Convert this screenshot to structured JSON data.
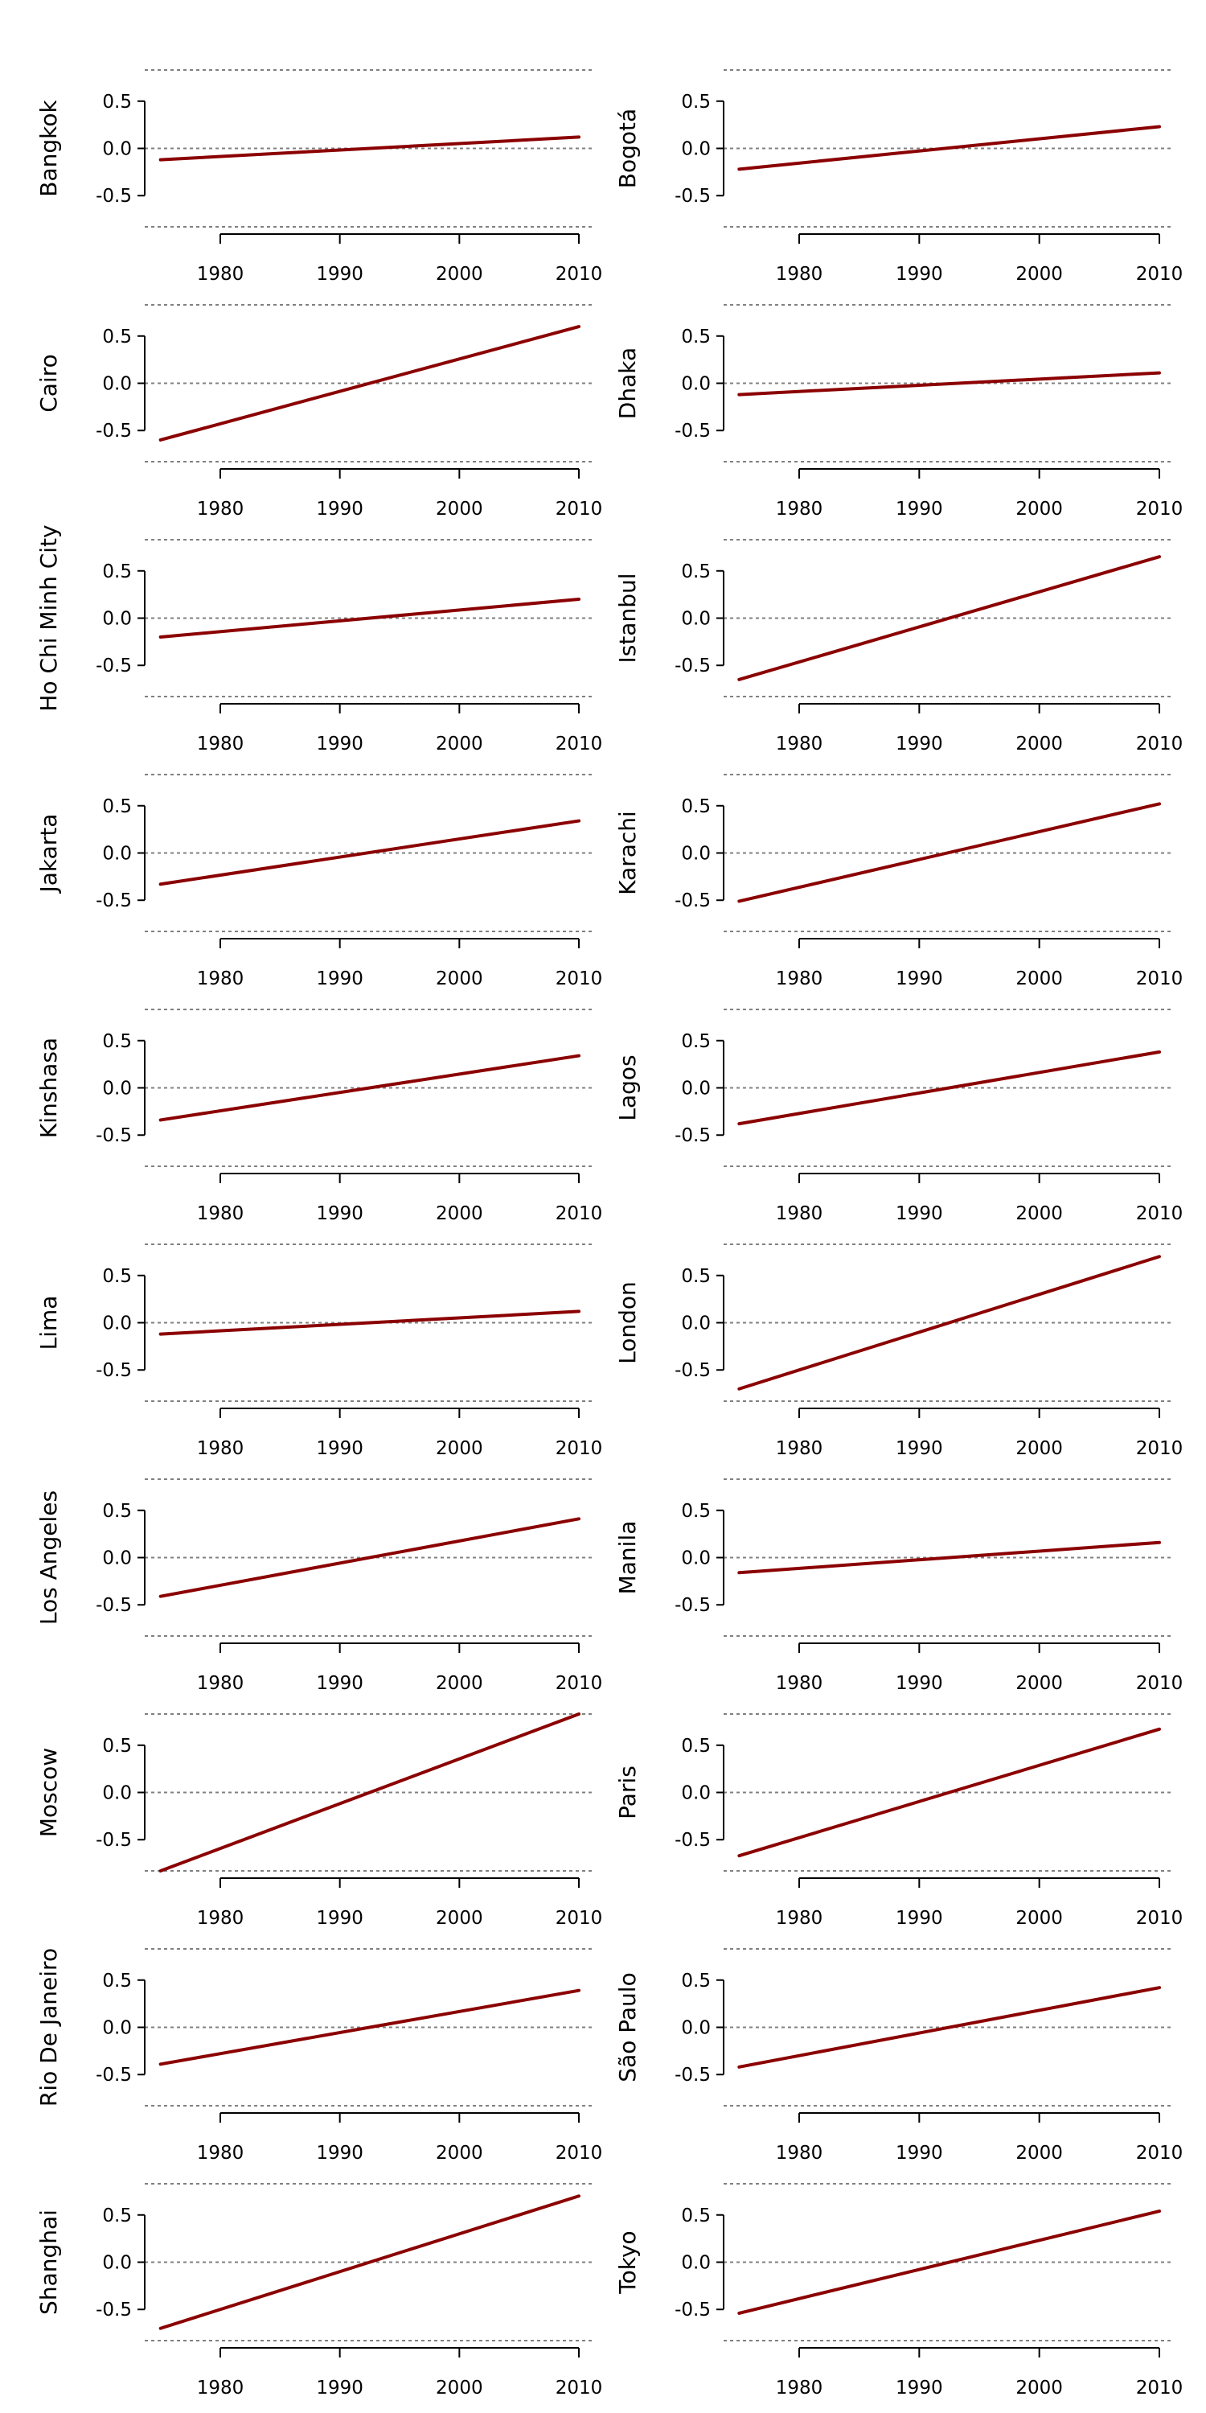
{
  "chart_data": {
    "type": "line",
    "layout": "small-multiples",
    "columns": 2,
    "colors": {
      "trend_line": "#8b0000",
      "reference_lines": "#808080",
      "axis": "#000000"
    },
    "y_ticks": [
      -0.5,
      0.0,
      0.5
    ],
    "y_tick_labels": [
      "-0.5",
      "0.0",
      "0.5"
    ],
    "x_ticks": [
      1980,
      1990,
      2000,
      2010
    ],
    "x_tick_labels": [
      "1980",
      "1990",
      "2000",
      "2010"
    ],
    "reference_lines_y": [
      -0.83,
      0.0,
      0.83
    ],
    "xlim": [
      1973,
      2011
    ],
    "ylim": [
      -0.83,
      0.83
    ],
    "grid": false,
    "panels": [
      {
        "title": "Bangkok",
        "x": [
          1975,
          2010
        ],
        "y": [
          -0.12,
          0.12
        ]
      },
      {
        "title": "Bogotá",
        "x": [
          1975,
          2010
        ],
        "y": [
          -0.22,
          0.23
        ]
      },
      {
        "title": "Cairo",
        "x": [
          1975,
          2010
        ],
        "y": [
          -0.6,
          0.6
        ]
      },
      {
        "title": "Dhaka",
        "x": [
          1975,
          2010
        ],
        "y": [
          -0.12,
          0.11
        ]
      },
      {
        "title": "Ho Chi Minh City",
        "x": [
          1975,
          2010
        ],
        "y": [
          -0.2,
          0.2
        ]
      },
      {
        "title": "Istanbul",
        "x": [
          1975,
          2010
        ],
        "y": [
          -0.65,
          0.65
        ]
      },
      {
        "title": "Jakarta",
        "x": [
          1975,
          2010
        ],
        "y": [
          -0.33,
          0.34
        ]
      },
      {
        "title": "Karachi",
        "x": [
          1975,
          2010
        ],
        "y": [
          -0.51,
          0.52
        ]
      },
      {
        "title": "Kinshasa",
        "x": [
          1975,
          2010
        ],
        "y": [
          -0.34,
          0.34
        ]
      },
      {
        "title": "Lagos",
        "x": [
          1975,
          2010
        ],
        "y": [
          -0.38,
          0.38
        ]
      },
      {
        "title": "Lima",
        "x": [
          1975,
          2010
        ],
        "y": [
          -0.12,
          0.12
        ]
      },
      {
        "title": "London",
        "x": [
          1975,
          2010
        ],
        "y": [
          -0.7,
          0.7
        ]
      },
      {
        "title": "Los Angeles",
        "x": [
          1975,
          2010
        ],
        "y": [
          -0.41,
          0.41
        ]
      },
      {
        "title": "Manila",
        "x": [
          1975,
          2010
        ],
        "y": [
          -0.16,
          0.16
        ]
      },
      {
        "title": "Moscow",
        "x": [
          1975,
          2010
        ],
        "y": [
          -0.83,
          0.83
        ]
      },
      {
        "title": "Paris",
        "x": [
          1975,
          2010
        ],
        "y": [
          -0.67,
          0.67
        ]
      },
      {
        "title": "Rio De Janeiro",
        "x": [
          1975,
          2010
        ],
        "y": [
          -0.39,
          0.39
        ]
      },
      {
        "title": "São Paulo",
        "x": [
          1975,
          2010
        ],
        "y": [
          -0.42,
          0.42
        ]
      },
      {
        "title": "Shanghai",
        "x": [
          1975,
          2010
        ],
        "y": [
          -0.7,
          0.7
        ]
      },
      {
        "title": "Tokyo",
        "x": [
          1975,
          2010
        ],
        "y": [
          -0.54,
          0.54
        ]
      }
    ]
  }
}
